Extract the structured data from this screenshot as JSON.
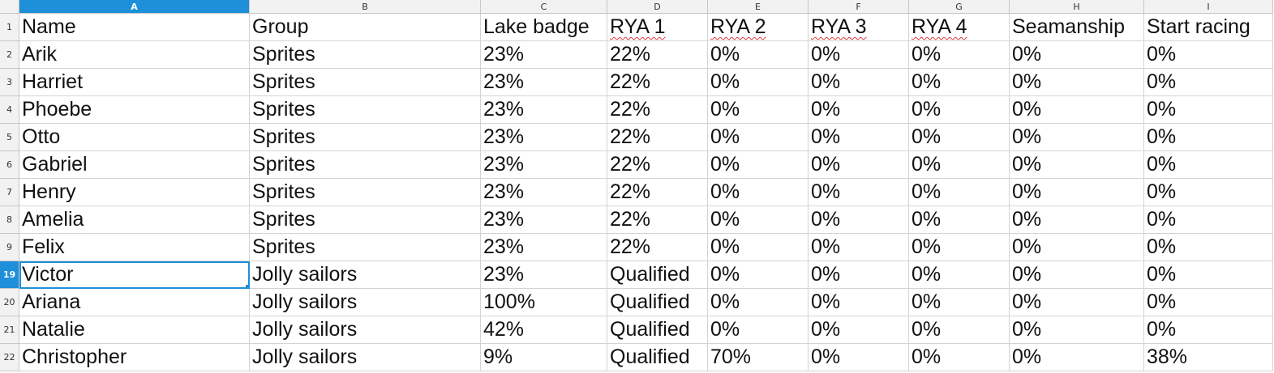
{
  "columns": [
    "A",
    "B",
    "C",
    "D",
    "E",
    "F",
    "G",
    "H",
    "I"
  ],
  "active_column": "A",
  "active_row": "19",
  "header_row_number": "1",
  "headers": [
    "Name",
    "Group",
    "Lake badge",
    "RYA 1",
    "RYA 2",
    "RYA 3",
    "RYA 4",
    "Seamanship",
    "Start racing"
  ],
  "rows": [
    {
      "num": "2",
      "cells": [
        "Arik",
        "Sprites",
        "23%",
        "22%",
        "0%",
        "0%",
        "0%",
        "0%",
        "0%"
      ]
    },
    {
      "num": "3",
      "cells": [
        "Harriet",
        "Sprites",
        "23%",
        "22%",
        "0%",
        "0%",
        "0%",
        "0%",
        "0%"
      ]
    },
    {
      "num": "4",
      "cells": [
        "Phoebe",
        "Sprites",
        "23%",
        "22%",
        "0%",
        "0%",
        "0%",
        "0%",
        "0%"
      ]
    },
    {
      "num": "5",
      "cells": [
        "Otto",
        "Sprites",
        "23%",
        "22%",
        "0%",
        "0%",
        "0%",
        "0%",
        "0%"
      ]
    },
    {
      "num": "6",
      "cells": [
        "Gabriel",
        "Sprites",
        "23%",
        "22%",
        "0%",
        "0%",
        "0%",
        "0%",
        "0%"
      ]
    },
    {
      "num": "7",
      "cells": [
        "Henry",
        "Sprites",
        "23%",
        "22%",
        "0%",
        "0%",
        "0%",
        "0%",
        "0%"
      ]
    },
    {
      "num": "8",
      "cells": [
        "Amelia",
        "Sprites",
        "23%",
        "22%",
        "0%",
        "0%",
        "0%",
        "0%",
        "0%"
      ]
    },
    {
      "num": "9",
      "cells": [
        "Felix",
        "Sprites",
        "23%",
        "22%",
        "0%",
        "0%",
        "0%",
        "0%",
        "0%"
      ]
    },
    {
      "num": "19",
      "cells": [
        "Victor",
        "Jolly sailors",
        "23%",
        "Qualified",
        "0%",
        "0%",
        "0%",
        "0%",
        "0%"
      ]
    },
    {
      "num": "20",
      "cells": [
        "Ariana",
        "Jolly sailors",
        "100%",
        "Qualified",
        "0%",
        "0%",
        "0%",
        "0%",
        "0%"
      ]
    },
    {
      "num": "21",
      "cells": [
        "Natalie",
        "Jolly sailors",
        "42%",
        "Qualified",
        "0%",
        "0%",
        "0%",
        "0%",
        "0%"
      ]
    },
    {
      "num": "22",
      "cells": [
        "Christopher",
        "Jolly sailors",
        "9%",
        "Qualified",
        "70%",
        "0%",
        "0%",
        "0%",
        "38%"
      ]
    }
  ],
  "colors": {
    "accent": "#1e8fd9",
    "header_bg": "#f2f2f2",
    "spellcheck": "#e23a3a"
  }
}
